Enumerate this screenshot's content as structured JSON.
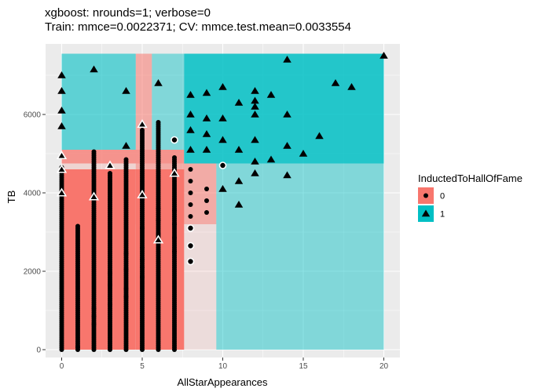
{
  "chart_data": {
    "type": "scatter",
    "title": "xgboost: nrounds=1; verbose=0",
    "subtitle": "Train: mmce=0.0022371; CV: mmce.test.mean=0.0033554",
    "xlabel": "AllStarAppearances",
    "ylabel": "TB",
    "xlim": [
      -1,
      21
    ],
    "ylim": [
      -200,
      7800
    ],
    "x_ticks": [
      0,
      5,
      10,
      15,
      20
    ],
    "y_ticks": [
      0,
      2000,
      4000,
      6000
    ],
    "grid": true,
    "legend": {
      "title": "InductedToHallOfFame",
      "placement": "right"
    },
    "colors": {
      "class0": "#F8766D",
      "class1": "#00BFC4",
      "panel": "#EBEBEB",
      "grid": "#FFFFFF"
    },
    "series": [
      {
        "name": "0",
        "shape": "circle"
      },
      {
        "name": "1",
        "shape": "triangle"
      }
    ],
    "regions": [
      {
        "x0": 0,
        "x1": 4.6,
        "y0": 0,
        "y1": 4600,
        "class": "0",
        "alpha": 1.0
      },
      {
        "x0": 4.6,
        "x1": 7.6,
        "y0": 0,
        "y1": 4600,
        "class": "0",
        "alpha": 1.0
      },
      {
        "x0": 0,
        "x1": 4.6,
        "y0": 4600,
        "y1": 4750,
        "class": "0",
        "alpha": 0.2
      },
      {
        "x0": 4.6,
        "x1": 9.6,
        "y0": 3200,
        "y1": 4750,
        "class": "0",
        "alpha": 0.55
      },
      {
        "x0": 7.6,
        "x1": 9.6,
        "y0": 0,
        "y1": 3200,
        "class": "0",
        "alpha": 0.12
      },
      {
        "x0": 9.6,
        "x1": 20,
        "y0": 0,
        "y1": 4750,
        "class": "1",
        "alpha": 0.45
      },
      {
        "x0": 0,
        "x1": 7.6,
        "y0": 4750,
        "y1": 5100,
        "class": "0",
        "alpha": 0.75
      },
      {
        "x0": 0,
        "x1": 4.6,
        "y0": 5100,
        "y1": 7550,
        "class": "1",
        "alpha": 0.6
      },
      {
        "x0": 4.6,
        "x1": 5.6,
        "y0": 5100,
        "y1": 7550,
        "class": "0",
        "alpha": 0.55
      },
      {
        "x0": 5.6,
        "x1": 7.6,
        "y0": 5100,
        "y1": 7550,
        "class": "1",
        "alpha": 0.45
      },
      {
        "x0": 7.6,
        "x1": 20,
        "y0": 4750,
        "y1": 7550,
        "class": "1",
        "alpha": 0.85
      }
    ],
    "strips": [
      {
        "x": 0,
        "y_max": 4650,
        "class": "0"
      },
      {
        "x": 1,
        "y_max": 3150,
        "class": "0"
      },
      {
        "x": 2,
        "y_max": 5050,
        "class": "0"
      },
      {
        "x": 3,
        "y_max": 4500,
        "class": "0"
      },
      {
        "x": 4,
        "y_max": 4850,
        "class": "0"
      },
      {
        "x": 5,
        "y_max": 5600,
        "class": "0"
      },
      {
        "x": 6,
        "y_max": 5800,
        "class": "0"
      },
      {
        "x": 7,
        "y_max": 4900,
        "class": "0"
      }
    ],
    "points": [
      {
        "x": 1,
        "y": 60,
        "class": "0"
      },
      {
        "x": 2,
        "y": 1050,
        "class": "0"
      },
      {
        "x": 2,
        "y": 850,
        "class": "0"
      },
      {
        "x": 2,
        "y": 650,
        "class": "0"
      },
      {
        "x": 3,
        "y": 1150,
        "class": "0"
      },
      {
        "x": 3,
        "y": 1650,
        "class": "0"
      },
      {
        "x": 3,
        "y": 1950,
        "class": "0"
      },
      {
        "x": 4,
        "y": 1350,
        "class": "0"
      },
      {
        "x": 4,
        "y": 1550,
        "class": "0"
      },
      {
        "x": 4,
        "y": 2050,
        "class": "0"
      },
      {
        "x": 4,
        "y": 2450,
        "class": "0"
      },
      {
        "x": 5,
        "y": 1850,
        "class": "0"
      },
      {
        "x": 5,
        "y": 2100,
        "class": "0"
      },
      {
        "x": 5,
        "y": 2300,
        "class": "0"
      },
      {
        "x": 5,
        "y": 2600,
        "class": "0"
      },
      {
        "x": 5,
        "y": 3100,
        "class": "0"
      },
      {
        "x": 6,
        "y": 2950,
        "class": "0"
      },
      {
        "x": 6,
        "y": 3300,
        "class": "0"
      },
      {
        "x": 6,
        "y": 3600,
        "class": "0"
      },
      {
        "x": 7,
        "y": 2500,
        "class": "0"
      },
      {
        "x": 7,
        "y": 2850,
        "class": "0"
      },
      {
        "x": 7,
        "y": 3200,
        "class": "0"
      },
      {
        "x": 7,
        "y": 3550,
        "class": "0"
      },
      {
        "x": 7,
        "y": 5350,
        "class": "0",
        "highlight": true
      },
      {
        "x": 8,
        "y": 3100,
        "class": "0",
        "highlight": true
      },
      {
        "x": 8,
        "y": 2650,
        "class": "0",
        "highlight": true
      },
      {
        "x": 8,
        "y": 2250,
        "class": "0",
        "highlight": true
      },
      {
        "x": 8,
        "y": 3400,
        "class": "0"
      },
      {
        "x": 8,
        "y": 3700,
        "class": "0"
      },
      {
        "x": 8,
        "y": 4000,
        "class": "0"
      },
      {
        "x": 8,
        "y": 4300,
        "class": "0"
      },
      {
        "x": 8,
        "y": 4600,
        "class": "0"
      },
      {
        "x": 9,
        "y": 3500,
        "class": "0"
      },
      {
        "x": 9,
        "y": 3800,
        "class": "0"
      },
      {
        "x": 9,
        "y": 4100,
        "class": "0"
      },
      {
        "x": 10,
        "y": 4700,
        "class": "0",
        "highlight": true
      },
      {
        "x": 0,
        "y": 7000,
        "class": "1"
      },
      {
        "x": 0,
        "y": 6600,
        "class": "1"
      },
      {
        "x": 0,
        "y": 6100,
        "class": "1"
      },
      {
        "x": 0,
        "y": 5700,
        "class": "1"
      },
      {
        "x": 0,
        "y": 4950,
        "class": "1",
        "highlight": true
      },
      {
        "x": 0,
        "y": 4600,
        "class": "1",
        "highlight": true
      },
      {
        "x": 0,
        "y": 4000,
        "class": "1",
        "highlight": true
      },
      {
        "x": 2,
        "y": 7150,
        "class": "1"
      },
      {
        "x": 2,
        "y": 3900,
        "class": "1",
        "highlight": true
      },
      {
        "x": 3,
        "y": 4700,
        "class": "1",
        "highlight": true
      },
      {
        "x": 4,
        "y": 6600,
        "class": "1"
      },
      {
        "x": 4,
        "y": 5200,
        "class": "1"
      },
      {
        "x": 5,
        "y": 5750,
        "class": "1",
        "highlight": true
      },
      {
        "x": 5,
        "y": 3950,
        "class": "1",
        "highlight": true
      },
      {
        "x": 6,
        "y": 6800,
        "class": "1"
      },
      {
        "x": 6,
        "y": 2800,
        "class": "1",
        "highlight": true
      },
      {
        "x": 7,
        "y": 4500,
        "class": "1",
        "highlight": true
      },
      {
        "x": 8,
        "y": 6500,
        "class": "1"
      },
      {
        "x": 8,
        "y": 6000,
        "class": "1"
      },
      {
        "x": 8,
        "y": 5600,
        "class": "1"
      },
      {
        "x": 8,
        "y": 5100,
        "class": "1"
      },
      {
        "x": 9,
        "y": 6550,
        "class": "1"
      },
      {
        "x": 9,
        "y": 5900,
        "class": "1"
      },
      {
        "x": 9,
        "y": 5500,
        "class": "1"
      },
      {
        "x": 9,
        "y": 5100,
        "class": "1"
      },
      {
        "x": 10,
        "y": 6700,
        "class": "1"
      },
      {
        "x": 10,
        "y": 5900,
        "class": "1"
      },
      {
        "x": 10,
        "y": 5350,
        "class": "1"
      },
      {
        "x": 10,
        "y": 4100,
        "class": "1"
      },
      {
        "x": 11,
        "y": 6300,
        "class": "1"
      },
      {
        "x": 11,
        "y": 5100,
        "class": "1"
      },
      {
        "x": 11,
        "y": 4300,
        "class": "1"
      },
      {
        "x": 11,
        "y": 3700,
        "class": "1"
      },
      {
        "x": 12,
        "y": 6600,
        "class": "1"
      },
      {
        "x": 12,
        "y": 6350,
        "class": "1"
      },
      {
        "x": 12,
        "y": 6200,
        "class": "1"
      },
      {
        "x": 12,
        "y": 6000,
        "class": "1"
      },
      {
        "x": 12,
        "y": 5350,
        "class": "1"
      },
      {
        "x": 12,
        "y": 4800,
        "class": "1"
      },
      {
        "x": 12,
        "y": 4500,
        "class": "1"
      },
      {
        "x": 13,
        "y": 6500,
        "class": "1"
      },
      {
        "x": 13,
        "y": 4850,
        "class": "1"
      },
      {
        "x": 14,
        "y": 7400,
        "class": "1"
      },
      {
        "x": 14,
        "y": 6000,
        "class": "1"
      },
      {
        "x": 14,
        "y": 5200,
        "class": "1"
      },
      {
        "x": 14,
        "y": 4450,
        "class": "1"
      },
      {
        "x": 15,
        "y": 5000,
        "class": "1"
      },
      {
        "x": 16,
        "y": 5450,
        "class": "1"
      },
      {
        "x": 17,
        "y": 6800,
        "class": "1"
      },
      {
        "x": 18,
        "y": 6700,
        "class": "1"
      },
      {
        "x": 20,
        "y": 7500,
        "class": "1"
      }
    ]
  }
}
